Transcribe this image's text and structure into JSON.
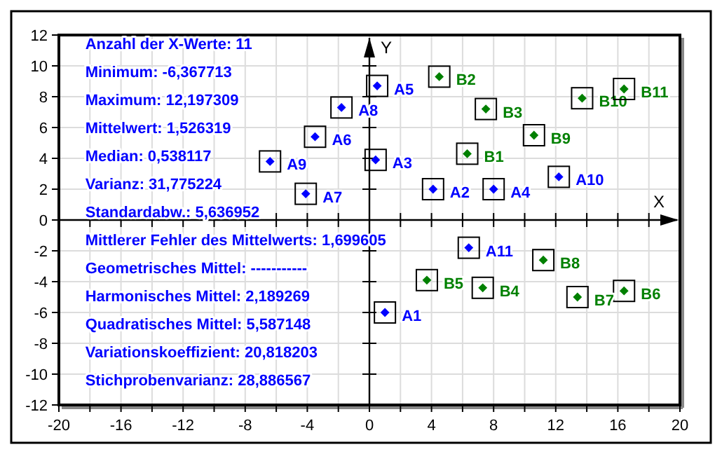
{
  "chart_data": {
    "type": "scatter",
    "xlabel": "X",
    "ylabel": "Y",
    "xlim": [
      -20,
      20
    ],
    "ylim": [
      -12,
      12
    ],
    "xticks": [
      -20,
      {
        "value": -18,
        "label": null
      },
      -16,
      {
        "value": -14,
        "label": null
      },
      -12,
      {
        "value": -10,
        "label": null
      },
      -8,
      {
        "value": -6,
        "label": null
      },
      -4,
      {
        "value": -2,
        "label": null
      },
      0,
      {
        "value": 2,
        "label": null
      },
      4,
      {
        "value": 6,
        "label": null
      },
      8,
      {
        "value": 10,
        "label": null
      },
      12,
      {
        "value": 14,
        "label": null
      },
      16,
      {
        "value": 18,
        "label": null
      },
      20
    ],
    "yticks": [
      -12,
      -10,
      -8,
      -6,
      -4,
      -2,
      0,
      2,
      4,
      6,
      8,
      10,
      12
    ],
    "grid": true,
    "marker": "diamond",
    "series": [
      {
        "color": "#0000ff",
        "x": [
          1.0,
          4.1,
          0.4,
          8.0,
          0.5,
          -3.5,
          -4.1,
          -1.8,
          -6.4,
          12.2,
          6.4
        ],
        "values": [
          -6.0,
          2.0,
          3.9,
          2.0,
          8.7,
          5.4,
          1.7,
          7.3,
          3.8,
          2.8,
          -1.8
        ],
        "value_labels": [
          "A1",
          "A2",
          "A3",
          "A4",
          "A5",
          "A6",
          "A7",
          "A8",
          "A9",
          "A10",
          "A11"
        ]
      },
      {
        "color": "#008000",
        "x": [
          6.3,
          4.5,
          7.5,
          7.3,
          3.7,
          16.4,
          13.4,
          11.2,
          10.6,
          13.7,
          16.4
        ],
        "values": [
          4.3,
          9.3,
          7.2,
          -4.4,
          -3.9,
          -4.6,
          -5.0,
          -2.6,
          5.5,
          7.9,
          8.5
        ],
        "value_labels": [
          "B1",
          "B2",
          "B3",
          "B4",
          "B5",
          "B6",
          "B7",
          "B8",
          "B9",
          "B10",
          "B11"
        ]
      }
    ],
    "annotations": [
      "Anzahl der X-Werte: 11",
      "Minimum: -6,367713",
      "Maximum: 12,197309",
      "Mittelwert: 1,526319",
      "Median: 0,538117",
      "Varianz: 31,775224",
      "Standardabw.: 5,636952",
      "Mittlerer Fehler des Mittelwerts: 1,699605",
      "Geometrisches Mittel: -----------",
      "Harmonisches Mittel: 2,189269",
      "Quadratisches Mittel: 5,587148",
      "Variationskoeffizient: 20,818203",
      "Stichprobenvarianz: 28,886567"
    ]
  }
}
